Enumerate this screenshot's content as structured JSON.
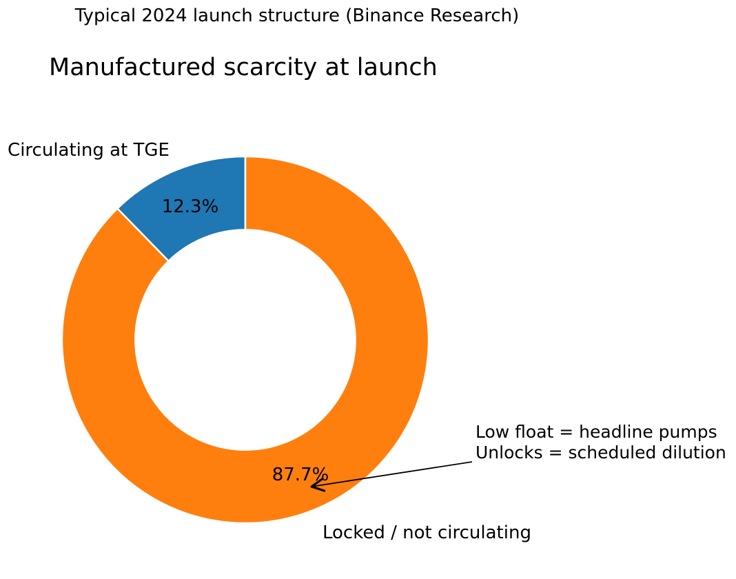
{
  "figure": {
    "suptitle": "Typical 2024 launch structure (Binance Research)",
    "background_color": "#ffffff",
    "text_color": "#000000"
  },
  "chart_data": {
    "type": "pie",
    "variant": "donut",
    "title": "Manufactured scarcity at launch",
    "slices": [
      {
        "label": "Circulating at TGE",
        "value": 12.3,
        "pct_label": "12.3%",
        "color": "#1f77b4"
      },
      {
        "label": "Locked / not circulating",
        "value": 87.7,
        "pct_label": "87.7%",
        "color": "#ff7f0e"
      }
    ],
    "start_angle_deg": 90,
    "counterclockwise": true,
    "inner_radius_ratio": 0.6,
    "wedge_edge_color": "#ffffff",
    "legend": "none",
    "annotation": {
      "text_lines": [
        "Low float = headline pumps",
        "Unlocks = scheduled dilution"
      ],
      "arrow_style": "->",
      "arrow_points_to": "87.7% wedge"
    }
  }
}
